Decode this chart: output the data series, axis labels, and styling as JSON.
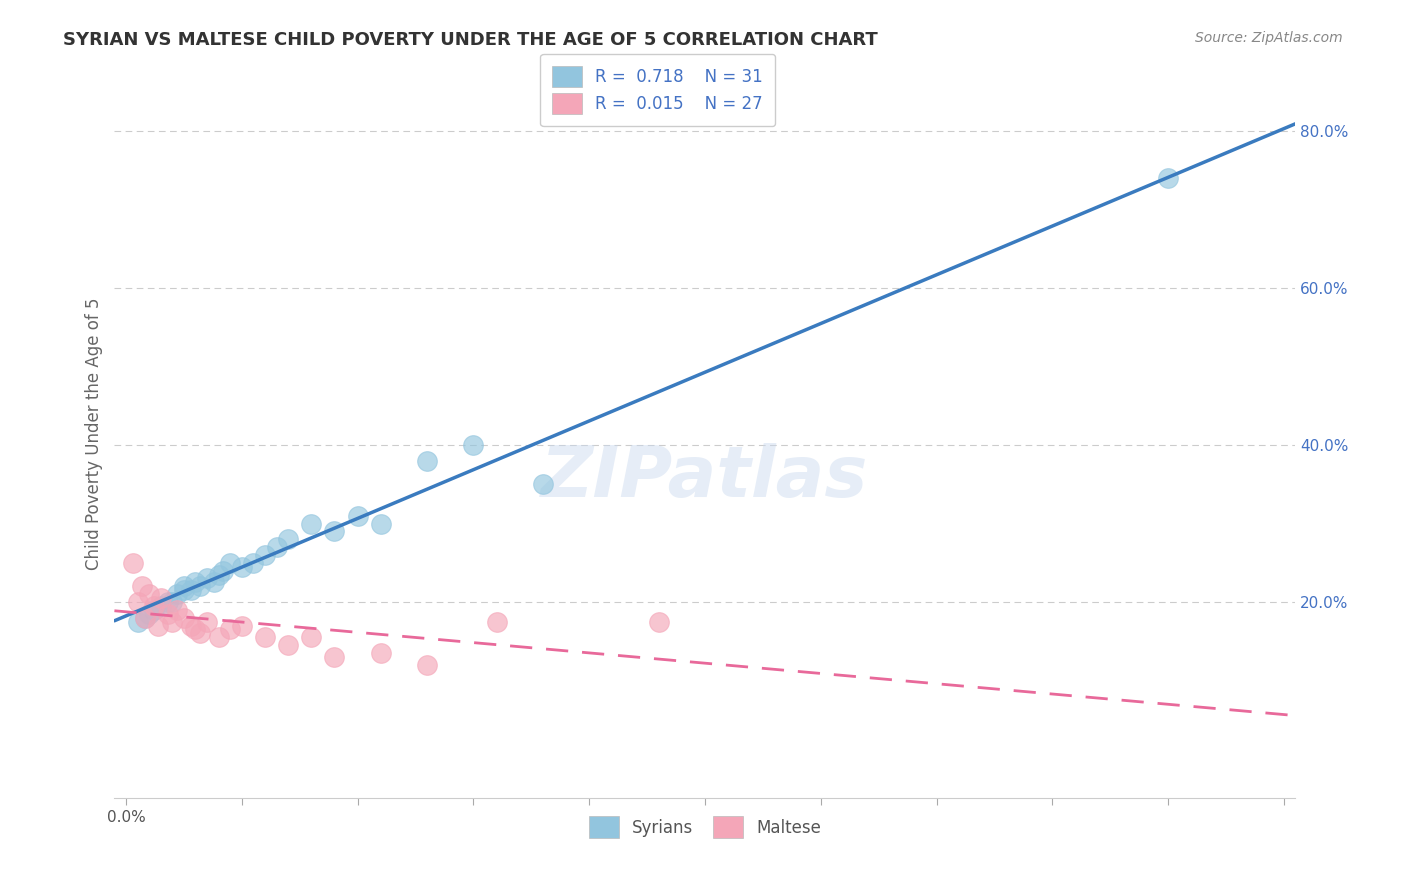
{
  "title": "SYRIAN VS MALTESE CHILD POVERTY UNDER THE AGE OF 5 CORRELATION CHART",
  "source": "Source: ZipAtlas.com",
  "ylabel": "Child Poverty Under the Age of 5",
  "xlim": [
    -0.005,
    0.505
  ],
  "ylim": [
    -0.05,
    0.88
  ],
  "xticks": [
    0.0,
    0.05,
    0.1,
    0.15,
    0.2,
    0.25,
    0.3,
    0.35,
    0.4,
    0.45,
    0.5
  ],
  "xticklabels_show": {
    "0.0": "0.0%"
  },
  "yticks_right": [
    0.2,
    0.4,
    0.6,
    0.8
  ],
  "ytick_right_labels": [
    "20.0%",
    "40.0%",
    "60.0%",
    "80.0%"
  ],
  "legend_r_syrian": "0.718",
  "legend_n_syrian": "31",
  "legend_r_maltese": "0.015",
  "legend_n_maltese": "27",
  "syrian_color": "#92c5de",
  "maltese_color": "#f4a6b8",
  "syrian_line_color": "#3a7bbf",
  "maltese_line_color": "#e8699a",
  "watermark": "ZIPatlas",
  "syrian_x": [
    0.005,
    0.008,
    0.01,
    0.012,
    0.015,
    0.018,
    0.02,
    0.022,
    0.025,
    0.025,
    0.028,
    0.03,
    0.032,
    0.035,
    0.038,
    0.04,
    0.042,
    0.045,
    0.05,
    0.055,
    0.06,
    0.065,
    0.07,
    0.08,
    0.09,
    0.1,
    0.11,
    0.13,
    0.15,
    0.18,
    0.45
  ],
  "syrian_y": [
    0.175,
    0.18,
    0.185,
    0.19,
    0.195,
    0.2,
    0.2,
    0.21,
    0.215,
    0.22,
    0.215,
    0.225,
    0.22,
    0.23,
    0.225,
    0.235,
    0.24,
    0.25,
    0.245,
    0.25,
    0.26,
    0.27,
    0.28,
    0.3,
    0.29,
    0.31,
    0.3,
    0.38,
    0.4,
    0.35,
    0.74
  ],
  "maltese_x": [
    0.003,
    0.005,
    0.007,
    0.008,
    0.01,
    0.012,
    0.014,
    0.015,
    0.018,
    0.02,
    0.022,
    0.025,
    0.028,
    0.03,
    0.032,
    0.035,
    0.04,
    0.045,
    0.05,
    0.06,
    0.07,
    0.08,
    0.09,
    0.11,
    0.13,
    0.16,
    0.23
  ],
  "maltese_y": [
    0.25,
    0.2,
    0.22,
    0.18,
    0.21,
    0.195,
    0.17,
    0.205,
    0.185,
    0.175,
    0.19,
    0.18,
    0.17,
    0.165,
    0.16,
    0.175,
    0.155,
    0.165,
    0.17,
    0.155,
    0.145,
    0.155,
    0.13,
    0.135,
    0.12,
    0.175,
    0.175
  ],
  "background_color": "#ffffff",
  "grid_color": "#cccccc",
  "title_fontsize": 13,
  "source_fontsize": 10,
  "tick_fontsize": 11,
  "ylabel_fontsize": 12
}
